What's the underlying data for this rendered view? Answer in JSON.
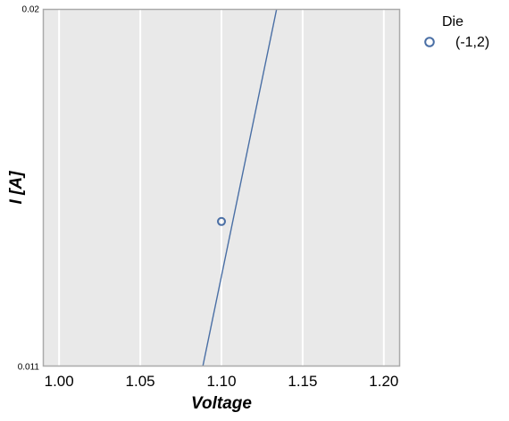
{
  "chart_data": {
    "type": "line",
    "xlabel": "Voltage",
    "ylabel": "I [A]",
    "xlim": [
      0.99,
      1.21
    ],
    "ylim": [
      0.011,
      0.02
    ],
    "x_ticks": [
      "1.00",
      "1.05",
      "1.10",
      "1.15",
      "1.20"
    ],
    "x_tick_values": [
      1.0,
      1.05,
      1.1,
      1.15,
      1.2
    ],
    "y_ticks": [
      "0.011",
      "0.02"
    ],
    "y_tick_values": [
      0.011,
      0.02
    ],
    "grid": true,
    "legend": {
      "title": "Die",
      "placement": "outside-top-right",
      "entries": [
        {
          "label": "(-1,2)",
          "marker": "open-circle",
          "color": "#4a6fa5"
        }
      ]
    },
    "series": [
      {
        "name": "(-1,2)",
        "color": "#4a6fa5",
        "line": {
          "x": [
            1.0885,
            1.134
          ],
          "y": [
            0.011,
            0.02
          ]
        },
        "points": [
          {
            "x": 1.1,
            "y": 0.01465
          }
        ]
      }
    ],
    "colors": {
      "plot_background": "#e9e9e9",
      "grid": "#ffffff",
      "frame": "#aaaaaa"
    }
  }
}
